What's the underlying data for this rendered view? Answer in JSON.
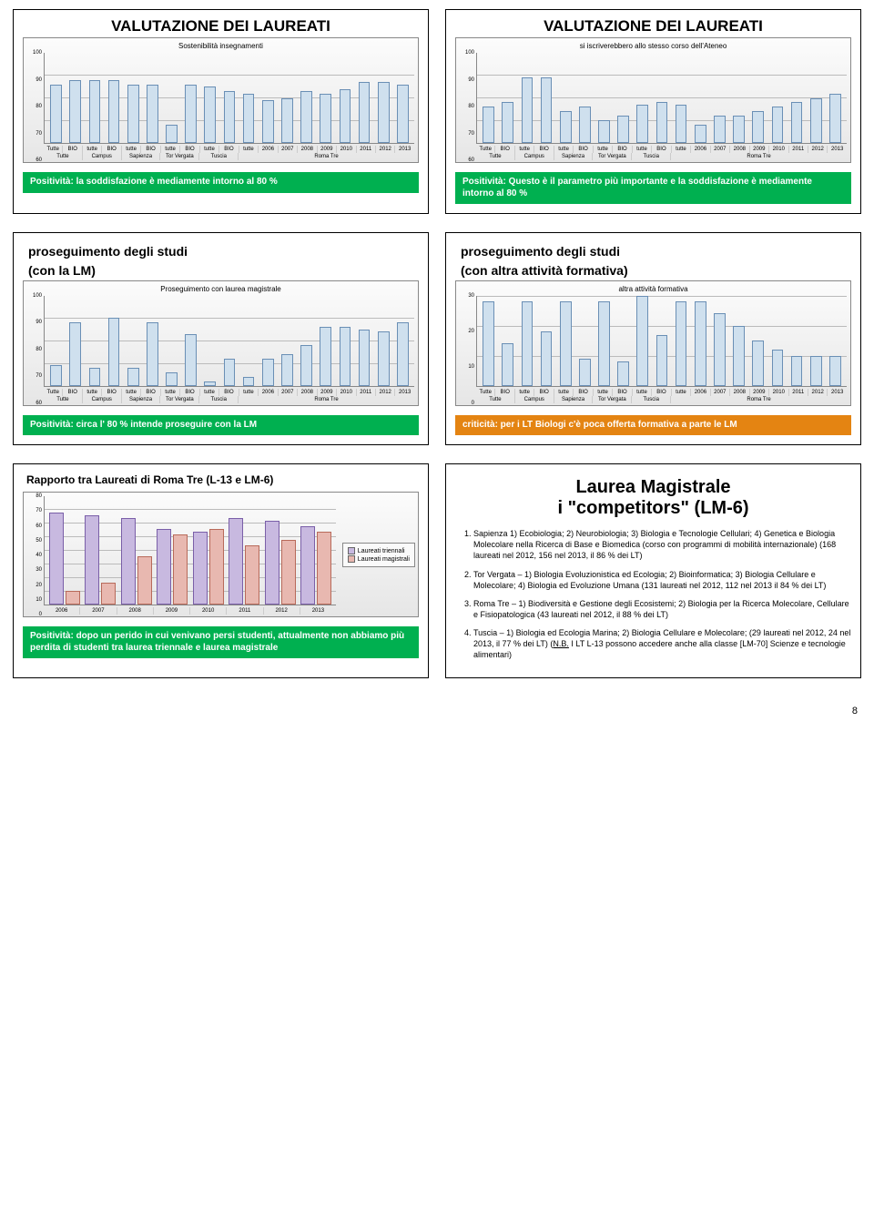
{
  "x_labels_top": [
    "Tutte",
    "BIO",
    "tutte",
    "BIO",
    "tutte",
    "BIO",
    "tutte",
    "BIO",
    "tutte",
    "BIO",
    "tutte",
    "2006",
    "2007",
    "2008",
    "2009",
    "2010",
    "2011",
    "2012",
    "2013"
  ],
  "x_groups": [
    {
      "label": "Tutte",
      "span": 2
    },
    {
      "label": "Campus",
      "span": 2
    },
    {
      "label": "Sapienza",
      "span": 2
    },
    {
      "label": "Tor Vergata",
      "span": 2
    },
    {
      "label": "Tuscia",
      "span": 2
    },
    {
      "label": "Roma Tre",
      "span": 9
    }
  ],
  "charts": {
    "c1": {
      "title": "VALUTAZIONE DEI LAUREATI",
      "subtitle": "Sostenibilità insegnamenti",
      "ymin": 60,
      "ymax": 100,
      "yticks": [
        60,
        70,
        80,
        90,
        100
      ],
      "values": [
        86,
        88,
        88,
        88,
        86,
        86,
        68,
        86,
        85,
        83,
        82,
        79,
        80,
        83,
        82,
        84,
        87,
        87,
        86
      ],
      "bar_color": "#cfe0ee",
      "bar_border": "#6a8fb5",
      "banner": {
        "type": "green",
        "text": "Positività: la soddisfazione è mediamente intorno al 80 %"
      }
    },
    "c2": {
      "title": "VALUTAZIONE DEI LAUREATI",
      "subtitle": "si iscriverebbero allo stesso corso dell'Ateneo",
      "ymin": 60,
      "ymax": 100,
      "yticks": [
        60,
        70,
        80,
        90,
        100
      ],
      "values": [
        76,
        78,
        89,
        89,
        74,
        76,
        70,
        72,
        77,
        78,
        77,
        68,
        72,
        72,
        74,
        76,
        78,
        80,
        82
      ],
      "bar_color": "#cfe0ee",
      "bar_border": "#6a8fb5",
      "banner": {
        "type": "green",
        "text": "Positività: Questo è il parametro più importante e la soddisfazione è mediamente intorno al 80 %"
      }
    },
    "c3": {
      "title_lines": [
        "proseguimento degli studi",
        "(con la LM)"
      ],
      "subtitle": "Proseguimento con laurea magistrale",
      "ymin": 60,
      "ymax": 100,
      "yticks": [
        60,
        70,
        80,
        90,
        100
      ],
      "values": [
        69,
        88,
        68,
        90,
        68,
        88,
        66,
        83,
        62,
        72,
        64,
        72,
        74,
        78,
        86,
        86,
        85,
        84,
        88
      ],
      "bar_color": "#cfe0ee",
      "bar_border": "#6a8fb5",
      "banner": {
        "type": "green",
        "text": "Positività: circa l' 80 % intende proseguire con la LM"
      }
    },
    "c4": {
      "title_lines": [
        "proseguimento degli studi",
        "(con altra attività formativa)"
      ],
      "subtitle": "altra attività formativa",
      "ymin": 0,
      "ymax": 30,
      "yticks": [
        0,
        10,
        20,
        30
      ],
      "values": [
        28,
        14,
        28,
        18,
        28,
        9,
        28,
        8,
        30,
        17,
        28,
        28,
        24,
        20,
        15,
        12,
        10,
        10,
        10
      ],
      "bar_color": "#cfe0ee",
      "bar_border": "#6a8fb5",
      "banner": {
        "type": "orange",
        "text": "criticità: per i LT Biologi c'è poca offerta formativa a parte le LM"
      }
    }
  },
  "grouped": {
    "title": "Rapporto tra Laureati di Roma Tre (L-13 e LM-6)",
    "ymin": 0,
    "ymax": 80,
    "yticks": [
      0,
      10,
      20,
      30,
      40,
      50,
      60,
      70,
      80
    ],
    "categories": [
      "2006",
      "2007",
      "2008",
      "2009",
      "2010",
      "2011",
      "2012",
      "2013"
    ],
    "series": [
      {
        "name": "Laureati triennali",
        "color": "#c8b9e0",
        "values": [
          68,
          66,
          64,
          56,
          54,
          64,
          62,
          58
        ]
      },
      {
        "name": "Laureati magistrali",
        "color": "#e8b8b0",
        "values": [
          10,
          16,
          36,
          52,
          56,
          44,
          48,
          54
        ]
      }
    ],
    "banner": {
      "type": "green",
      "text": "Positività: dopo un perido in cui venivano persi studenti, attualmente non abbiamo più perdita di studenti tra laurea triennale e laurea magistrale"
    }
  },
  "text_slide": {
    "title_lines": [
      "Laurea Magistrale",
      "i \"competitors\" (LM-6)"
    ],
    "items": [
      "Sapienza 1) Ecobiologia; 2) Neurobiologia; 3) Biologia e Tecnologie Cellulari; 4) Genetica e Biologia Molecolare nella Ricerca di Base e Biomedica (corso con programmi di mobilità internazionale) (168 laureati nel 2012, 156 nel 2013, il 86 % dei LT)",
      "Tor Vergata – 1) Biologia Evoluzionistica ed Ecologia; 2) Bioinformatica; 3) Biologia Cellulare e Molecolare; 4) Biologia ed Evoluzione Umana (131 laureati nel 2012, 112 nel 2013 il 84 % dei LT)",
      "Roma Tre – 1) Biodiversità e Gestione degli Ecosistemi; 2) Biologia per la Ricerca Molecolare, Cellulare e Fisiopatologica (43 laureati nel 2012, il 88 % dei LT)",
      "Tuscia – 1) Biologia ed Ecologia Marina; 2) Biologia Cellulare e Molecolare; (29 laureati nel 2012, 24 nel 2013, il 77 % dei LT)  (<u>N.B.</u> I LT L-13 possono accedere anche alla classe [LM-70] Scienze e tecnologie alimentari)"
    ]
  },
  "page_number": "8"
}
